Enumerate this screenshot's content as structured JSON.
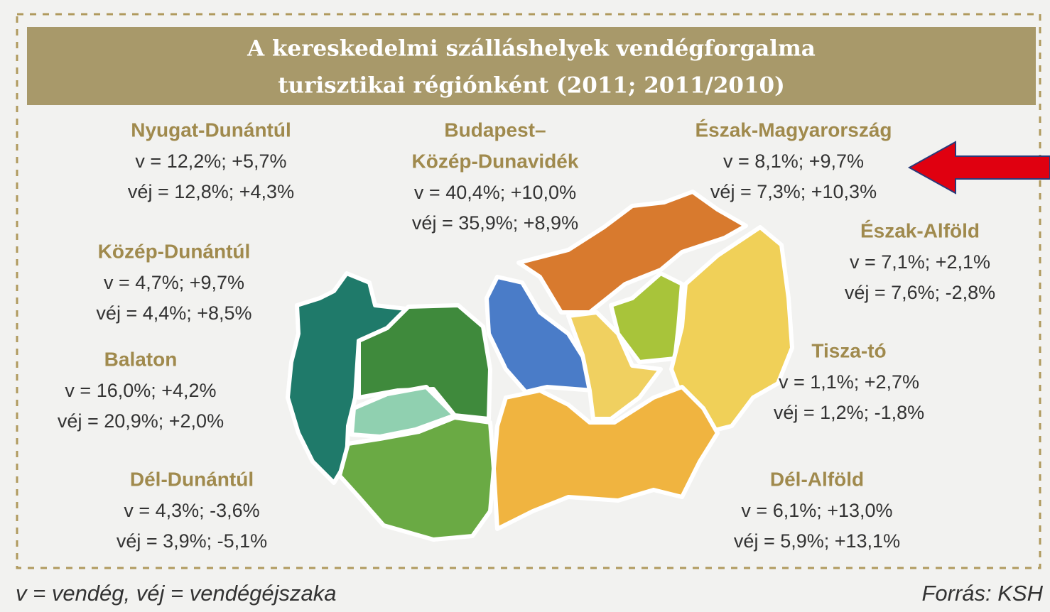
{
  "title": [
    "A kereskedelmi szálláshelyek vendégforgalma",
    "turisztikai régiónként (2011; 2011/2010)"
  ],
  "regions": [
    {
      "name": [
        "Nyugat-Dunántúl"
      ],
      "v": "v = 12,2%; +5,7%",
      "vej": "véj = 12,8%; +4,3%"
    },
    {
      "name": [
        "Budapest–",
        "Közép-Dunavidék"
      ],
      "v": "v = 40,4%; +10,0%",
      "vej": "véj = 35,9%; +8,9%"
    },
    {
      "name": [
        "Észak-Magyarország"
      ],
      "v": "v = 8,1%; +9,7%",
      "vej": "véj = 7,3%; +10,3%"
    },
    {
      "name": [
        "Észak-Alföld"
      ],
      "v": "v = 7,1%; +2,1%",
      "vej": "véj = 7,6%; -2,8%"
    },
    {
      "name": [
        "Közép-Dunántúl"
      ],
      "v": "v = 4,7%; +9,7%",
      "vej": "véj = 4,4%; +8,5%"
    },
    {
      "name": [
        "Balaton"
      ],
      "v": "v = 16,0%; +4,2%",
      "vej": "véj = 20,9%; +2,0%"
    },
    {
      "name": [
        "Tisza-tó"
      ],
      "v": "v = 1,1%; +2,7%",
      "vej": "véj = 1,2%; -1,8%"
    },
    {
      "name": [
        "Dél-Dunántúl"
      ],
      "v": "v = 4,3%; -3,6%",
      "vej": "véj = 3,9%; -5,1%"
    },
    {
      "name": [
        "Dél-Alföld"
      ],
      "v": "v = 6,1%; +13,0%",
      "vej": "véj = 5,9%; +13,1%"
    }
  ],
  "legend": "v = vendég, véj = vendégéjszaka",
  "source": "Forrás: KSH"
}
